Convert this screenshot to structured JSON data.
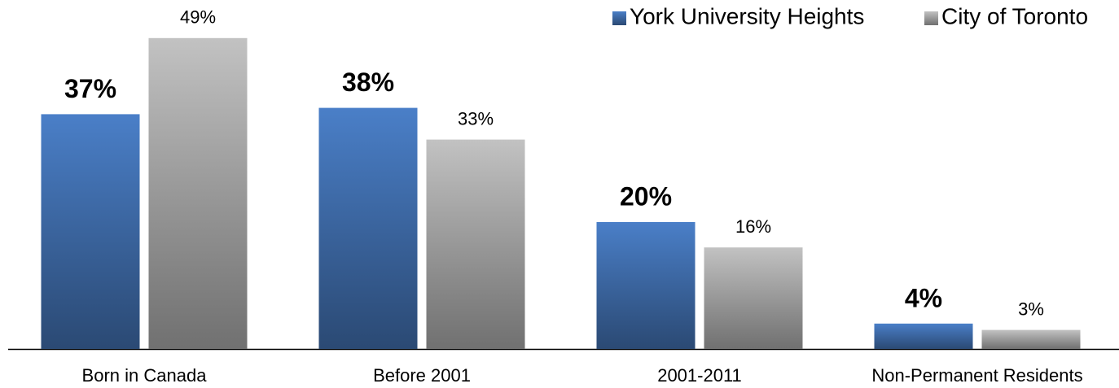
{
  "chart_data": {
    "type": "bar",
    "categories": [
      "Born in Canada",
      "Before 2001",
      "2001-2011",
      "Non-Permanent Residents"
    ],
    "series": [
      {
        "name": "York University Heights",
        "color": "#4a7fc8",
        "values": [
          37,
          38,
          20,
          4
        ],
        "value_labels": [
          "37%",
          "38%",
          "20%",
          "4%"
        ]
      },
      {
        "name": "City of Toronto",
        "color": "#c2c2c2",
        "values": [
          49,
          33,
          16,
          3
        ],
        "value_labels": [
          "49%",
          "33%",
          "16%",
          "3%"
        ]
      }
    ],
    "legend": "upper right"
  }
}
